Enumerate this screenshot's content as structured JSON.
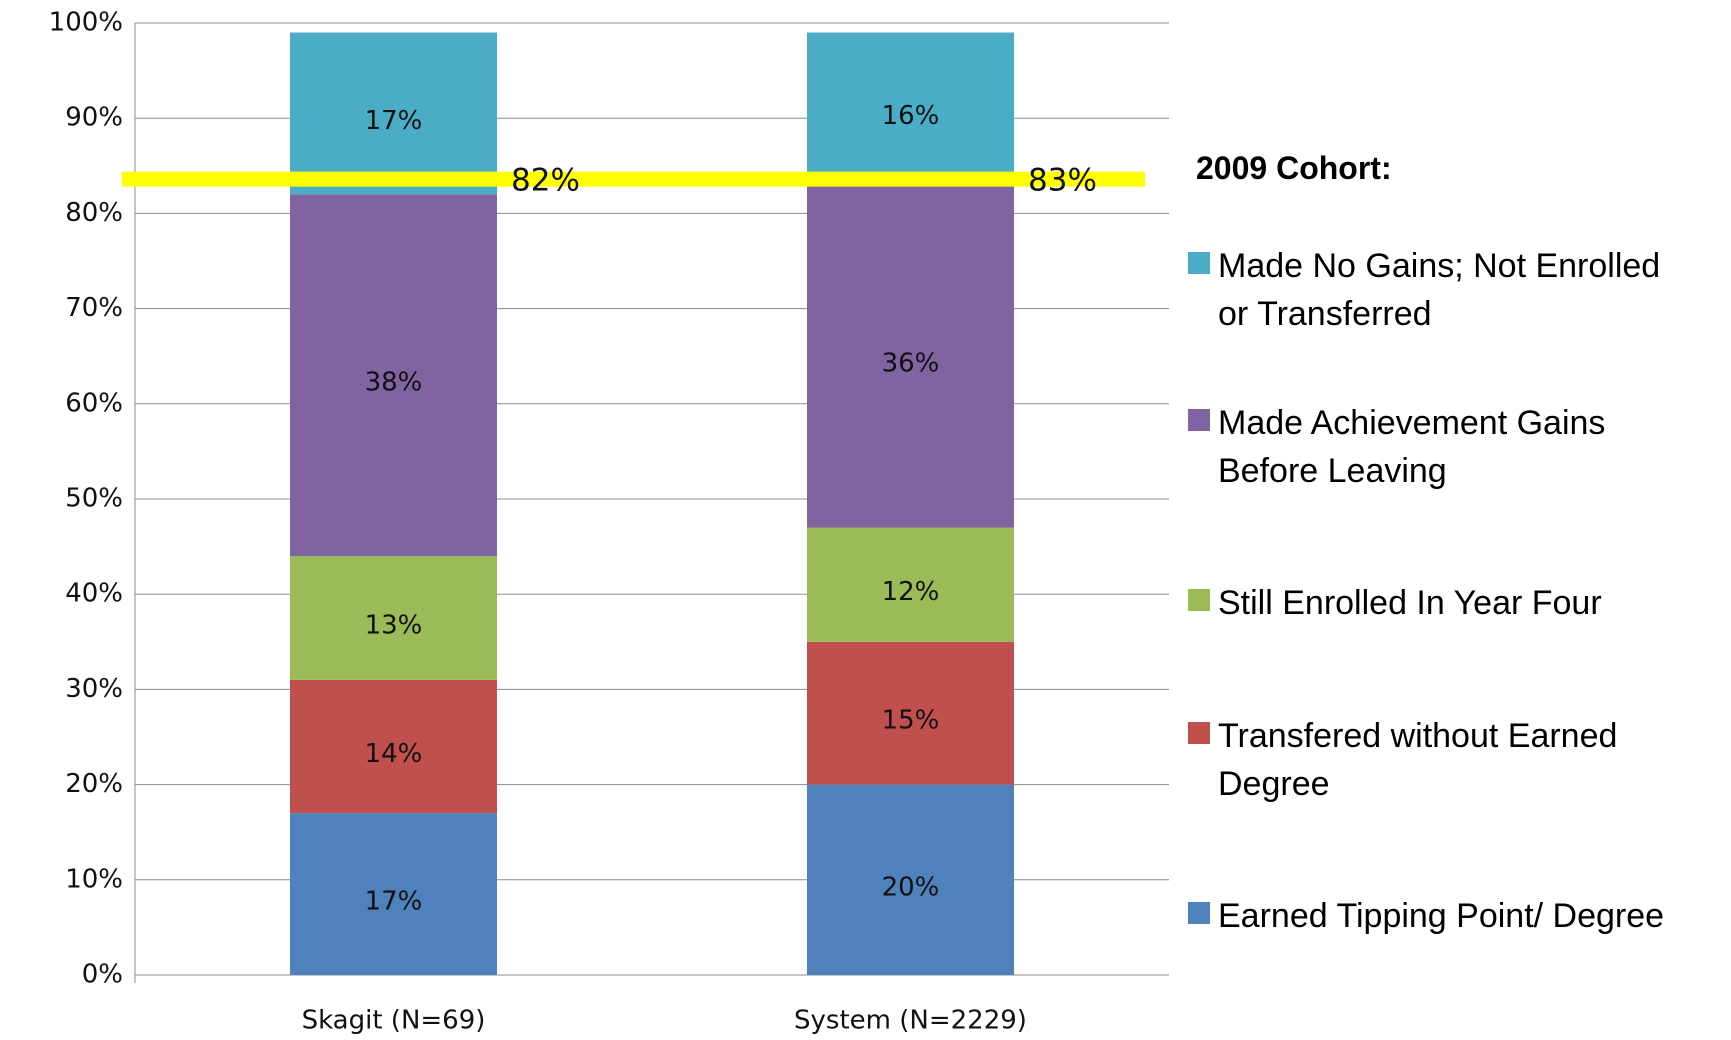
{
  "chart_data": {
    "type": "stacked_bar",
    "categories": [
      "Skagit (N=69)",
      "System (N=2229)"
    ],
    "series": [
      {
        "name": "Earned Tipping Point/ Degree",
        "color": "#4f81bd",
        "values": [
          17,
          20
        ],
        "value_labels": [
          "17%",
          "20%"
        ]
      },
      {
        "name": "Transfered without Earned Degree",
        "color": "#c0504d",
        "values": [
          14,
          15
        ],
        "value_labels": [
          "14%",
          "15%"
        ]
      },
      {
        "name": "Still Enrolled In Year Four",
        "color": "#9bbb59",
        "values": [
          13,
          12
        ],
        "value_labels": [
          "13%",
          "12%"
        ]
      },
      {
        "name": "Made Achievement Gains Before Leaving",
        "color": "#8064a2",
        "values": [
          38,
          36
        ],
        "value_labels": [
          "38%",
          "36%"
        ]
      },
      {
        "name": "Made No Gains; Not Enrolled or Transferred",
        "color": "#4bacc6",
        "values": [
          17,
          16
        ],
        "value_labels": [
          "17%",
          "16%"
        ]
      }
    ],
    "ylim": [
      0,
      100
    ],
    "yticks": [
      {
        "value": 0,
        "label": "0%"
      },
      {
        "value": 10,
        "label": "10%"
      },
      {
        "value": 20,
        "label": "20%"
      },
      {
        "value": 30,
        "label": "30%"
      },
      {
        "value": 40,
        "label": "40%"
      },
      {
        "value": 50,
        "label": "50%"
      },
      {
        "value": 60,
        "label": "60%"
      },
      {
        "value": 70,
        "label": "70%"
      },
      {
        "value": 80,
        "label": "80%"
      },
      {
        "value": 90,
        "label": "90%"
      },
      {
        "value": 100,
        "label": "100%"
      }
    ],
    "grid": true,
    "legend_title": "2009 Cohort:",
    "reference_line": {
      "value": 83.6,
      "color": "#ffff00"
    },
    "annotations": [
      "82%",
      "83%"
    ]
  }
}
